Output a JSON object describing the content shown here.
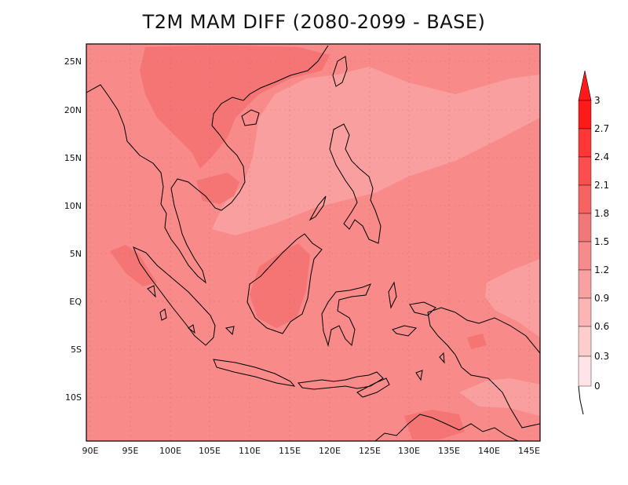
{
  "title": "T2M MAM DIFF (2080-2099 - BASE)",
  "map": {
    "x_ticks": [
      "90E",
      "95E",
      "100E",
      "105E",
      "110E",
      "115E",
      "120E",
      "125E",
      "130E",
      "135E",
      "140E",
      "145E"
    ],
    "y_ticks": [
      "25N",
      "20N",
      "15N",
      "10N",
      "5N",
      "EQ",
      "5S",
      "10S"
    ],
    "lon_range": [
      89.5,
      146.5
    ],
    "lat_range": [
      -15.0,
      27.0
    ],
    "field_colors": {
      "background": "#f88a8a",
      "lighter_sea": "#fa9f9f",
      "warmer_land": "#f57575"
    }
  },
  "colorbar": {
    "levels": [
      "3",
      "2.7",
      "2.4",
      "2.1",
      "1.8",
      "1.5",
      "1.2",
      "0.9",
      "0.6",
      "0.3",
      "0"
    ],
    "colors": [
      "#ff1a1a",
      "#ff3636",
      "#fb4e4e",
      "#f56363",
      "#f27878",
      "#f58b8b",
      "#f9a0a0",
      "#fbb5b5",
      "#fdcccc",
      "#fee4e4"
    ]
  }
}
